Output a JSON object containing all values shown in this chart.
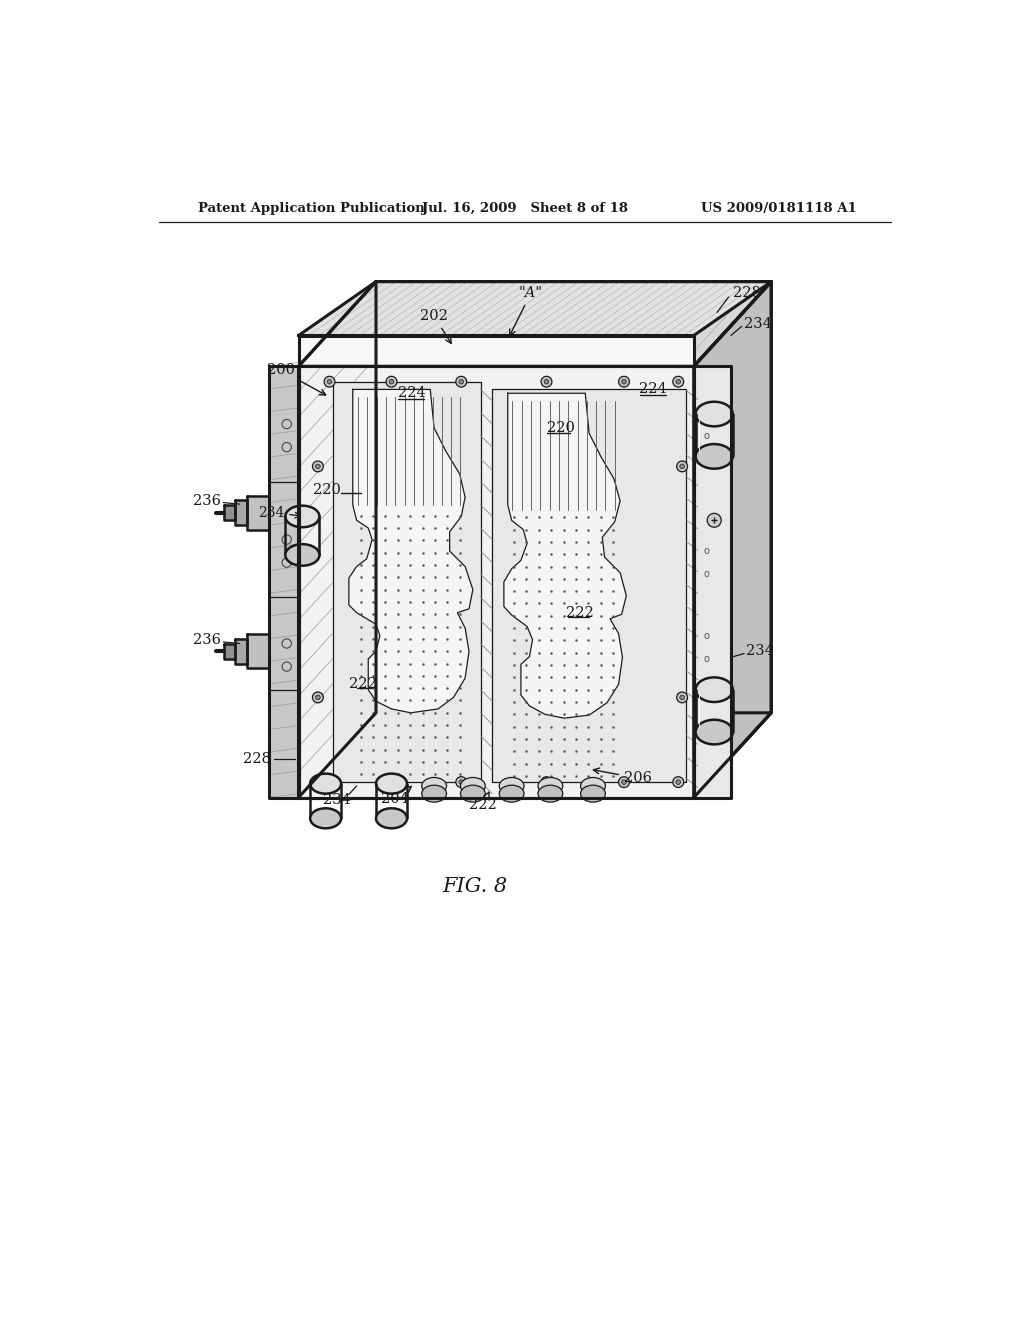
{
  "header_left": "Patent Application Publication",
  "header_mid": "Jul. 16, 2009   Sheet 8 of 18",
  "header_right": "US 2009/0181118 A1",
  "fig_label": "FIG. 8",
  "bg_color": "#ffffff",
  "line_color": "#1a1a1a",
  "gray_light": "#f0f0f0",
  "gray_mid": "#d8d8d8",
  "gray_dark": "#b0b0b0",
  "gray_darker": "#888888",
  "hatch_color": "#999999"
}
